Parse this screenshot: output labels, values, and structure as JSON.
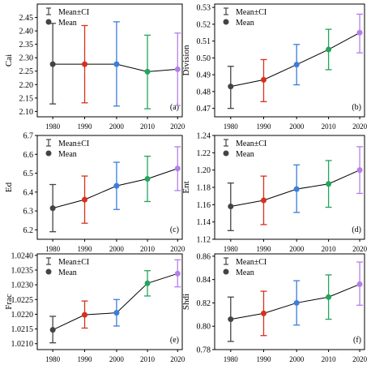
{
  "chart_data": [
    {
      "type": "line",
      "panel_label": "(a)",
      "ylabel": "Cai",
      "x": [
        "1980",
        "1990",
        "2000",
        "2010",
        "2020"
      ],
      "ylim": [
        2.08,
        2.5
      ],
      "yticks": [
        "2.10",
        "2.15",
        "2.20",
        "2.25",
        "2.30",
        "2.35",
        "2.40",
        "2.45"
      ],
      "ytick_values": [
        2.1,
        2.15,
        2.2,
        2.25,
        2.3,
        2.35,
        2.4,
        2.45
      ],
      "mean": [
        2.276,
        2.276,
        2.276,
        2.248,
        2.257
      ],
      "ci_low": [
        2.128,
        2.132,
        2.12,
        2.11,
        2.122
      ],
      "ci_high": [
        2.428,
        2.42,
        2.434,
        2.384,
        2.392
      ],
      "legend": {
        "ci": "Mean±CI",
        "mean": "Mean"
      },
      "legend_position": "top-left",
      "series_colors": [
        "#d7301f",
        "#3b7ddd",
        "#23a55a",
        "#b57ee8"
      ]
    },
    {
      "type": "line",
      "panel_label": "(b)",
      "ylabel": "Division",
      "x": [
        "1980",
        "1990",
        "2000",
        "2010",
        "2020"
      ],
      "ylim": [
        0.465,
        0.532
      ],
      "yticks": [
        "0.47",
        "0.48",
        "0.49",
        "0.50",
        "0.51",
        "0.52",
        "0.53"
      ],
      "ytick_values": [
        0.47,
        0.48,
        0.49,
        0.5,
        0.51,
        0.52,
        0.53
      ],
      "mean": [
        0.483,
        0.487,
        0.496,
        0.505,
        0.515
      ],
      "ci_low": [
        0.47,
        0.474,
        0.484,
        0.493,
        0.503
      ],
      "ci_high": [
        0.495,
        0.499,
        0.508,
        0.517,
        0.526
      ],
      "legend": {
        "ci": "Mean±CI",
        "mean": "Mean"
      },
      "legend_position": "top-left",
      "series_colors": [
        "#d7301f",
        "#3b7ddd",
        "#23a55a",
        "#b57ee8"
      ]
    },
    {
      "type": "line",
      "panel_label": "(c)",
      "ylabel": "Ed",
      "x": [
        "1980",
        "1990",
        "2000",
        "2010",
        "2020"
      ],
      "ylim": [
        6.15,
        6.7
      ],
      "yticks": [
        "6.2",
        "6.3",
        "6.4",
        "6.5",
        "6.6",
        "6.7"
      ],
      "ytick_values": [
        6.2,
        6.3,
        6.4,
        6.5,
        6.6,
        6.7
      ],
      "mean": [
        6.315,
        6.36,
        6.433,
        6.47,
        6.525
      ],
      "ci_low": [
        6.19,
        6.235,
        6.308,
        6.35,
        6.408
      ],
      "ci_high": [
        6.44,
        6.485,
        6.558,
        6.59,
        6.64
      ],
      "legend": {
        "ci": "Mean±CI",
        "mean": "Mean"
      },
      "legend_position": "top-left",
      "series_colors": [
        "#d7301f",
        "#3b7ddd",
        "#23a55a",
        "#b57ee8"
      ]
    },
    {
      "type": "line",
      "panel_label": "(d)",
      "ylabel": "Ent",
      "x": [
        "1980",
        "1990",
        "2000",
        "2010",
        "2020"
      ],
      "ylim": [
        1.12,
        1.24
      ],
      "yticks": [
        "1.12",
        "1.14",
        "1.16",
        "1.18",
        "1.20",
        "1.22",
        "1.24"
      ],
      "ytick_values": [
        1.12,
        1.14,
        1.16,
        1.18,
        1.2,
        1.22,
        1.24
      ],
      "mean": [
        1.158,
        1.165,
        1.178,
        1.184,
        1.2
      ],
      "ci_low": [
        1.13,
        1.137,
        1.151,
        1.157,
        1.173
      ],
      "ci_high": [
        1.185,
        1.193,
        1.206,
        1.211,
        1.227
      ],
      "legend": {
        "ci": "Mean±CI",
        "mean": "Mean"
      },
      "legend_position": "top-left",
      "series_colors": [
        "#d7301f",
        "#3b7ddd",
        "#23a55a",
        "#b57ee8"
      ]
    },
    {
      "type": "line",
      "panel_label": "(e)",
      "ylabel": "Frac",
      "x": [
        "1980",
        "1990",
        "2000",
        "2010",
        "2020"
      ],
      "ylim": [
        1.0208,
        1.02405
      ],
      "yticks": [
        "1.0210",
        "1.0215",
        "1.0220",
        "1.0225",
        "1.0230",
        "1.0235",
        "1.0240"
      ],
      "ytick_values": [
        1.021,
        1.0215,
        1.022,
        1.0225,
        1.023,
        1.0235,
        1.024
      ],
      "mean": [
        1.02147,
        1.02198,
        1.02205,
        1.02305,
        1.02338
      ],
      "ci_low": [
        1.02103,
        1.02153,
        1.0216,
        1.02262,
        1.02293
      ],
      "ci_high": [
        1.02193,
        1.02245,
        1.0225,
        1.02348,
        1.02385
      ],
      "legend": {
        "ci": "Mean±CI",
        "mean": "Mean"
      },
      "legend_position": "top-left",
      "series_colors": [
        "#d7301f",
        "#3b7ddd",
        "#23a55a",
        "#b57ee8"
      ]
    },
    {
      "type": "line",
      "panel_label": "(f)",
      "ylabel": "Shdi",
      "x": [
        "1980",
        "1990",
        "2000",
        "2010",
        "2020"
      ],
      "ylim": [
        0.78,
        0.862
      ],
      "yticks": [
        "0.78",
        "0.80",
        "0.82",
        "0.84",
        "0.86"
      ],
      "ytick_values": [
        0.78,
        0.8,
        0.82,
        0.84,
        0.86
      ],
      "mean": [
        0.806,
        0.811,
        0.82,
        0.825,
        0.836
      ],
      "ci_low": [
        0.787,
        0.792,
        0.801,
        0.806,
        0.818
      ],
      "ci_high": [
        0.825,
        0.83,
        0.839,
        0.844,
        0.855
      ],
      "legend": {
        "ci": "Mean±CI",
        "mean": "Mean"
      },
      "legend_position": "top-left",
      "series_colors": [
        "#d7301f",
        "#3b7ddd",
        "#23a55a",
        "#b57ee8"
      ]
    }
  ]
}
